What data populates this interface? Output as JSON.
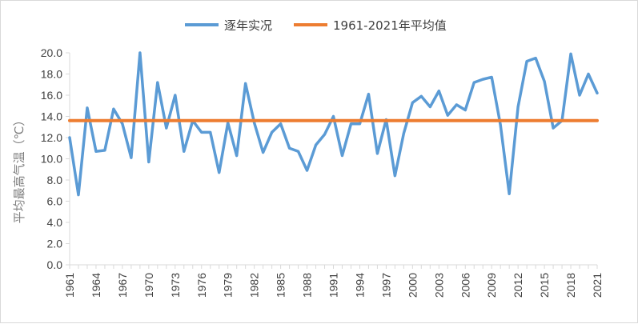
{
  "chart_data": {
    "type": "line",
    "title": "",
    "xlabel": "",
    "ylabel": "平均最高气温（℃）",
    "ylim": [
      0,
      20
    ],
    "yticks": [
      "0.0",
      "2.0",
      "4.0",
      "6.0",
      "8.0",
      "10.0",
      "12.0",
      "14.0",
      "16.0",
      "18.0",
      "20.0"
    ],
    "x_tick_labels": [
      "1961",
      "1964",
      "1967",
      "1970",
      "1973",
      "1976",
      "1979",
      "1982",
      "1985",
      "1988",
      "1991",
      "1994",
      "1997",
      "2000",
      "2003",
      "2006",
      "2009",
      "2012",
      "2015",
      "2018",
      "2021"
    ],
    "grid": false,
    "legend_position": "top-center",
    "x": [
      1961,
      1962,
      1963,
      1964,
      1965,
      1966,
      1967,
      1968,
      1969,
      1970,
      1971,
      1972,
      1973,
      1974,
      1975,
      1976,
      1977,
      1978,
      1979,
      1980,
      1981,
      1982,
      1983,
      1984,
      1985,
      1986,
      1987,
      1988,
      1989,
      1990,
      1991,
      1992,
      1993,
      1994,
      1995,
      1996,
      1997,
      1998,
      1999,
      2000,
      2001,
      2002,
      2003,
      2004,
      2005,
      2006,
      2007,
      2008,
      2009,
      2010,
      2011,
      2012,
      2013,
      2014,
      2015,
      2016,
      2017,
      2018,
      2019,
      2020,
      2021
    ],
    "series": [
      {
        "name": "逐年实况",
        "color": "#5b9bd5",
        "values": [
          12.0,
          6.6,
          14.8,
          10.7,
          10.8,
          14.7,
          13.3,
          10.1,
          20.0,
          9.7,
          17.2,
          12.9,
          16.0,
          10.7,
          13.6,
          12.5,
          12.5,
          8.7,
          13.4,
          10.3,
          17.1,
          13.4,
          10.6,
          12.5,
          13.3,
          11.0,
          10.7,
          8.9,
          11.3,
          12.3,
          14.0,
          10.3,
          13.3,
          13.3,
          16.1,
          10.5,
          13.7,
          8.4,
          12.4,
          15.3,
          15.9,
          14.9,
          16.4,
          14.1,
          15.1,
          14.6,
          17.2,
          17.5,
          17.7,
          13.2,
          6.7,
          14.9,
          19.2,
          19.5,
          17.3,
          12.9,
          13.6,
          19.9,
          16.0,
          18.0,
          16.2
        ]
      },
      {
        "name": "1961-2021年平均值",
        "color": "#ed7d31",
        "values": [
          13.6,
          13.6,
          13.6,
          13.6,
          13.6,
          13.6,
          13.6,
          13.6,
          13.6,
          13.6,
          13.6,
          13.6,
          13.6,
          13.6,
          13.6,
          13.6,
          13.6,
          13.6,
          13.6,
          13.6,
          13.6,
          13.6,
          13.6,
          13.6,
          13.6,
          13.6,
          13.6,
          13.6,
          13.6,
          13.6,
          13.6,
          13.6,
          13.6,
          13.6,
          13.6,
          13.6,
          13.6,
          13.6,
          13.6,
          13.6,
          13.6,
          13.6,
          13.6,
          13.6,
          13.6,
          13.6,
          13.6,
          13.6,
          13.6,
          13.6,
          13.6,
          13.6,
          13.6,
          13.6,
          13.6,
          13.6,
          13.6,
          13.6,
          13.6,
          13.6,
          13.6
        ]
      }
    ]
  }
}
